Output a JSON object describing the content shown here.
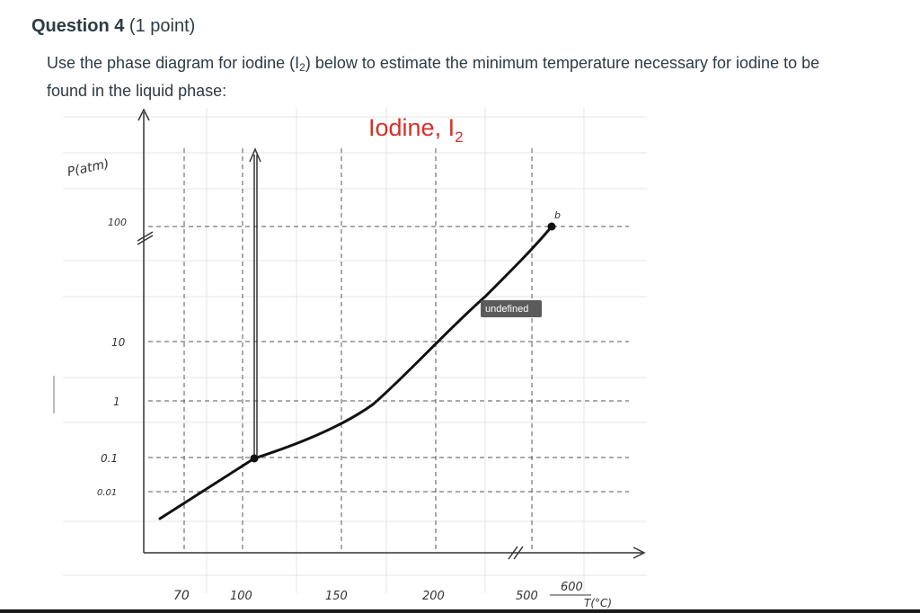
{
  "question": {
    "title": "Question 4",
    "points": "(1 point)",
    "prompt_before": "Use the phase diagram for iodine (I",
    "prompt_sub": "2",
    "prompt_after": ") below to estimate the minimum temperature necessary for iodine to be found in the liquid phase:"
  },
  "diagram": {
    "title_main": "Iodine, I",
    "title_sub": "2",
    "y_axis_label": "P(atm)",
    "x_axis_label": "T(°C)",
    "y_ticks": [
      "100",
      "10",
      "1",
      "0.1",
      "0.01"
    ],
    "x_ticks": [
      "70",
      "100",
      "150",
      "200",
      "500",
      "600"
    ],
    "point_label": "b",
    "tooltip": "undefined",
    "title_color": "#d6302a",
    "line_color": "#111111"
  }
}
